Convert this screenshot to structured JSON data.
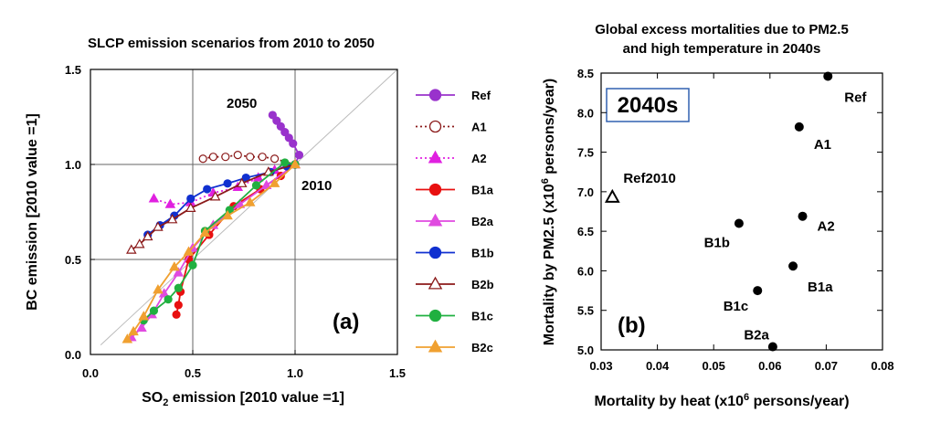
{
  "chart_data": [
    {
      "type": "line",
      "title": "SLCP emission scenarios from 2010 to 2050",
      "xlabel": "SO",
      "xlabel_sub": "2",
      "xlabel_rest": " emission [2010 value =1]",
      "ylabel": "BC emission [2010 value =1]",
      "xlim": [
        0.0,
        1.5
      ],
      "ylim": [
        0.0,
        1.5
      ],
      "xticks": [
        "0.0",
        "0.5",
        "1.0",
        "1.5"
      ],
      "yticks": [
        "0.0",
        "0.5",
        "1.0",
        "1.5"
      ],
      "annotations": {
        "start": "2010",
        "end": "2050",
        "panel": "(a)"
      },
      "series": [
        {
          "name": "Ref",
          "color": "#9932CC",
          "marker": "circle",
          "filled": true,
          "dash": "solid",
          "x": [
            1.0,
            1.02,
            0.99,
            0.97,
            0.95,
            0.93,
            0.91,
            0.89
          ],
          "y": [
            1.0,
            1.05,
            1.11,
            1.14,
            1.17,
            1.2,
            1.23,
            1.26
          ]
        },
        {
          "name": "A1",
          "color": "#8B1A1A",
          "marker": "circle",
          "filled": false,
          "dash": "dotted",
          "x": [
            1.0,
            0.9,
            0.84,
            0.78,
            0.72,
            0.66,
            0.6,
            0.55
          ],
          "y": [
            1.0,
            1.03,
            1.04,
            1.04,
            1.05,
            1.04,
            1.04,
            1.03
          ]
        },
        {
          "name": "A2",
          "color": "#E020E0",
          "marker": "triangle",
          "filled": true,
          "dash": "dotted",
          "x": [
            1.0,
            0.96,
            0.9,
            0.82,
            0.72,
            0.6,
            0.49,
            0.39,
            0.31
          ],
          "y": [
            1.0,
            1.0,
            0.97,
            0.93,
            0.88,
            0.85,
            0.8,
            0.79,
            0.82
          ]
        },
        {
          "name": "B1a",
          "color": "#E81010",
          "marker": "circle",
          "filled": true,
          "dash": "solid",
          "x": [
            1.0,
            0.93,
            0.83,
            0.7,
            0.58,
            0.48,
            0.44,
            0.43,
            0.42
          ],
          "y": [
            1.0,
            0.94,
            0.87,
            0.78,
            0.63,
            0.5,
            0.33,
            0.26,
            0.21
          ]
        },
        {
          "name": "B2a",
          "color": "#E04AE0",
          "marker": "triangle",
          "filled": true,
          "dash": "solid",
          "x": [
            1.0,
            0.86,
            0.73,
            0.6,
            0.5,
            0.43,
            0.36,
            0.3,
            0.25,
            0.2
          ],
          "y": [
            1.0,
            0.89,
            0.79,
            0.68,
            0.56,
            0.43,
            0.32,
            0.21,
            0.14,
            0.09
          ]
        },
        {
          "name": "B1b",
          "color": "#1030D0",
          "marker": "circle",
          "filled": true,
          "dash": "solid",
          "x": [
            1.0,
            0.96,
            0.88,
            0.76,
            0.67,
            0.57,
            0.49,
            0.41,
            0.34,
            0.28
          ],
          "y": [
            1.0,
            0.99,
            0.96,
            0.93,
            0.9,
            0.87,
            0.82,
            0.73,
            0.68,
            0.63
          ]
        },
        {
          "name": "B2b",
          "color": "#8B1A1A",
          "marker": "triangle",
          "filled": false,
          "dash": "solid",
          "x": [
            1.0,
            0.87,
            0.74,
            0.61,
            0.49,
            0.4,
            0.33,
            0.28,
            0.24,
            0.2
          ],
          "y": [
            1.0,
            0.96,
            0.9,
            0.83,
            0.77,
            0.71,
            0.67,
            0.62,
            0.58,
            0.55
          ]
        },
        {
          "name": "B1c",
          "color": "#20B040",
          "marker": "circle",
          "filled": true,
          "dash": "solid",
          "x": [
            1.0,
            0.95,
            0.81,
            0.68,
            0.56,
            0.5,
            0.43,
            0.38,
            0.31,
            0.26
          ],
          "y": [
            1.0,
            1.01,
            0.89,
            0.76,
            0.65,
            0.47,
            0.35,
            0.29,
            0.23,
            0.18
          ]
        },
        {
          "name": "B2c",
          "color": "#F0A030",
          "marker": "triangle",
          "filled": true,
          "dash": "solid",
          "x": [
            1.0,
            0.9,
            0.78,
            0.67,
            0.56,
            0.48,
            0.41,
            0.33,
            0.26,
            0.21,
            0.18
          ],
          "y": [
            1.0,
            0.9,
            0.8,
            0.73,
            0.64,
            0.54,
            0.46,
            0.34,
            0.2,
            0.12,
            0.08
          ]
        }
      ]
    },
    {
      "type": "scatter",
      "title": "Global excess mortalities due to PM2.5",
      "title2": "and high temperature in 2040s",
      "xlabel": "Mortality by heat (x10",
      "xlabel_sup": "6",
      "xlabel_rest": " persons/year)",
      "ylabel": "Mortality by PM2.5 (x10",
      "ylabel_sup": "6",
      "ylabel_rest": " persons/year)",
      "xlim": [
        0.03,
        0.08
      ],
      "ylim": [
        5.0,
        8.5
      ],
      "xticks": [
        "0.03",
        "0.04",
        "0.05",
        "0.06",
        "0.07",
        "0.08"
      ],
      "yticks": [
        "5.0",
        "5.5",
        "6.0",
        "6.5",
        "7.0",
        "7.5",
        "8.0",
        "8.5"
      ],
      "box_label": "2040s",
      "panel_label": "(b)",
      "points": [
        {
          "label": "Ref",
          "x": 0.0703,
          "y": 8.46,
          "marker": "circle"
        },
        {
          "label": "A1",
          "x": 0.0652,
          "y": 7.82,
          "marker": "circle"
        },
        {
          "label": "A2",
          "x": 0.0658,
          "y": 6.69,
          "marker": "circle"
        },
        {
          "label": "B1b",
          "x": 0.0545,
          "y": 6.6,
          "marker": "circle"
        },
        {
          "label": "B1a",
          "x": 0.0641,
          "y": 6.06,
          "marker": "circle"
        },
        {
          "label": "B1c",
          "x": 0.0578,
          "y": 5.75,
          "marker": "circle"
        },
        {
          "label": "B2a",
          "x": 0.0605,
          "y": 5.04,
          "marker": "circle"
        },
        {
          "label": "Ref2010",
          "x": 0.032,
          "y": 6.93,
          "marker": "triangle-open"
        }
      ]
    }
  ]
}
